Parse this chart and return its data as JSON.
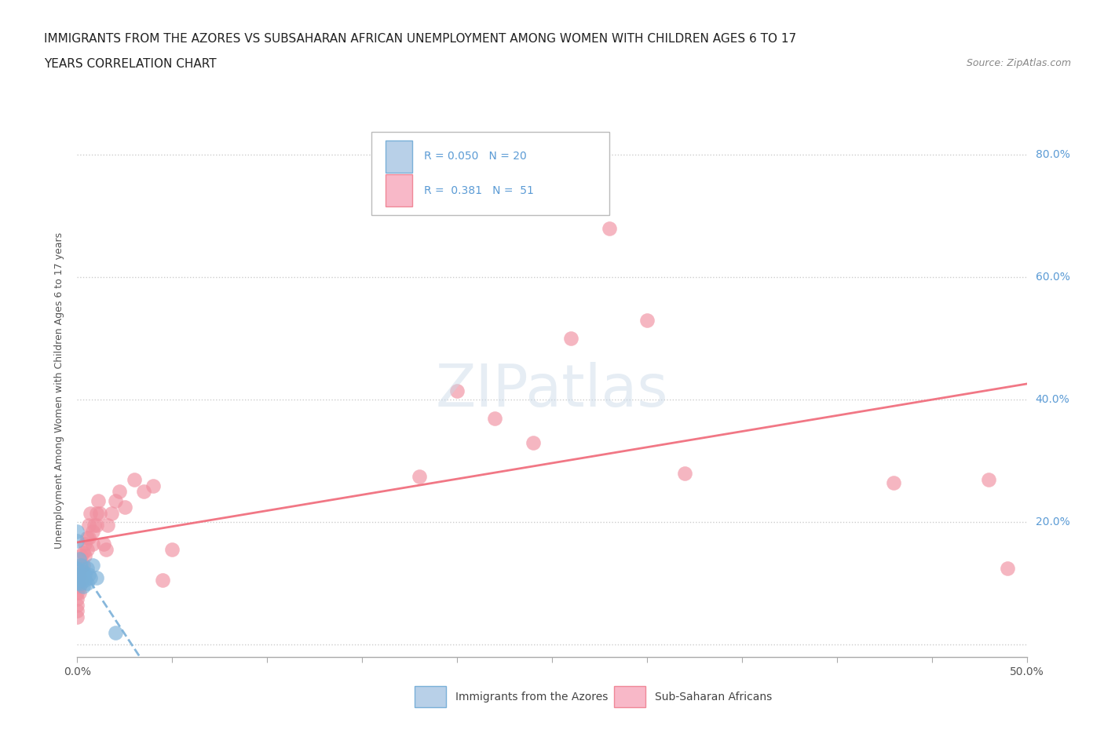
{
  "title_line1": "IMMIGRANTS FROM THE AZORES VS SUBSAHARAN AFRICAN UNEMPLOYMENT AMONG WOMEN WITH CHILDREN AGES 6 TO 17",
  "title_line2": "YEARS CORRELATION CHART",
  "source": "Source: ZipAtlas.com",
  "ylabel": "Unemployment Among Women with Children Ages 6 to 17 years",
  "xlim": [
    0.0,
    0.5
  ],
  "ylim": [
    -0.02,
    0.85
  ],
  "xticks": [
    0.0,
    0.05,
    0.1,
    0.15,
    0.2,
    0.25,
    0.3,
    0.35,
    0.4,
    0.45,
    0.5
  ],
  "ytick_positions": [
    0.0,
    0.2,
    0.4,
    0.6,
    0.8
  ],
  "ytick_labels": [
    "",
    "20.0%",
    "40.0%",
    "60.0%",
    "80.0%"
  ],
  "xtick_labels": [
    "0.0%",
    "",
    "",
    "",
    "",
    "",
    "",
    "",
    "",
    "",
    "50.0%"
  ],
  "watermark": "ZIPatlas",
  "legend_label_azores": "Immigrants from the Azores",
  "legend_label_african": "Sub-Saharan Africans",
  "azores_color": "#7ab0d8",
  "african_color": "#f090a0",
  "azores_line_color": "#7ab0d8",
  "african_line_color": "#f06878",
  "right_ytick_color": "#5b9bd5",
  "title_fontsize": 11,
  "source_fontsize": 9,
  "azores_x": [
    0.0,
    0.0,
    0.0,
    0.0,
    0.0,
    0.001,
    0.001,
    0.002,
    0.002,
    0.003,
    0.003,
    0.004,
    0.004,
    0.005,
    0.005,
    0.006,
    0.007,
    0.008,
    0.01,
    0.02
  ],
  "azores_y": [
    0.185,
    0.17,
    0.125,
    0.115,
    0.1,
    0.14,
    0.105,
    0.13,
    0.1,
    0.12,
    0.095,
    0.115,
    0.105,
    0.125,
    0.1,
    0.115,
    0.11,
    0.13,
    0.11,
    0.02
  ],
  "african_x": [
    0.0,
    0.0,
    0.0,
    0.0,
    0.0,
    0.0,
    0.001,
    0.001,
    0.001,
    0.002,
    0.002,
    0.002,
    0.003,
    0.003,
    0.004,
    0.004,
    0.005,
    0.005,
    0.006,
    0.006,
    0.007,
    0.008,
    0.008,
    0.009,
    0.01,
    0.01,
    0.011,
    0.012,
    0.014,
    0.015,
    0.016,
    0.018,
    0.02,
    0.022,
    0.025,
    0.03,
    0.035,
    0.04,
    0.045,
    0.05,
    0.18,
    0.2,
    0.22,
    0.24,
    0.26,
    0.28,
    0.3,
    0.32,
    0.43,
    0.48,
    0.49
  ],
  "african_y": [
    0.095,
    0.085,
    0.075,
    0.065,
    0.055,
    0.045,
    0.115,
    0.095,
    0.085,
    0.145,
    0.125,
    0.105,
    0.15,
    0.13,
    0.165,
    0.145,
    0.175,
    0.155,
    0.195,
    0.175,
    0.215,
    0.185,
    0.165,
    0.195,
    0.215,
    0.195,
    0.235,
    0.215,
    0.165,
    0.155,
    0.195,
    0.215,
    0.235,
    0.25,
    0.225,
    0.27,
    0.25,
    0.26,
    0.105,
    0.155,
    0.275,
    0.415,
    0.37,
    0.33,
    0.5,
    0.68,
    0.53,
    0.28,
    0.265,
    0.27,
    0.125
  ],
  "azores_R": 0.05,
  "azores_N": 20,
  "african_R": 0.381,
  "african_N": 51
}
